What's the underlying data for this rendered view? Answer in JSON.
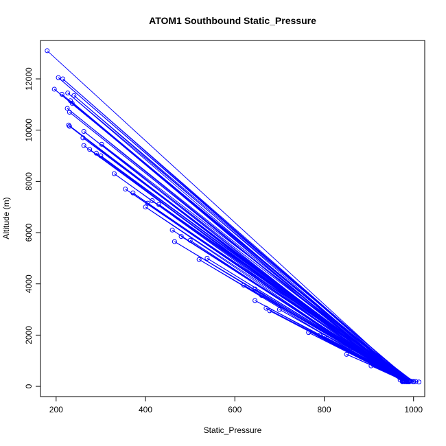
{
  "chart_data": {
    "type": "line",
    "title": "ATOM1 Southbound Static_Pressure",
    "xlabel": "Static_Pressure",
    "ylabel": "Altitude (m)",
    "xlim": [
      165,
      1025
    ],
    "ylim": [
      -400,
      13500
    ],
    "xticks": [
      200,
      400,
      600,
      800,
      1000
    ],
    "yticks": [
      0,
      2000,
      4000,
      6000,
      8000,
      10000,
      12000
    ],
    "series_color": "#0000ff",
    "marker": "open-circle",
    "points": [
      [
        180,
        13100
      ],
      [
        985,
        250
      ],
      [
        205,
        12050
      ],
      [
        990,
        230
      ],
      [
        215,
        12000
      ],
      [
        985,
        220
      ],
      [
        196,
        11600
      ],
      [
        990,
        210
      ],
      [
        213,
        11400
      ],
      [
        980,
        180
      ],
      [
        226,
        11450
      ],
      [
        995,
        200
      ],
      [
        240,
        11350
      ],
      [
        985,
        190
      ],
      [
        232,
        11150
      ],
      [
        975,
        210
      ],
      [
        236,
        11050
      ],
      [
        990,
        180
      ],
      [
        225,
        10850
      ],
      [
        980,
        200
      ],
      [
        230,
        10700
      ],
      [
        985,
        180
      ],
      [
        228,
        10200
      ],
      [
        975,
        230
      ],
      [
        230,
        10150
      ],
      [
        970,
        250
      ],
      [
        262,
        9950
      ],
      [
        990,
        180
      ],
      [
        260,
        9700
      ],
      [
        985,
        190
      ],
      [
        262,
        9400
      ],
      [
        980,
        200
      ],
      [
        275,
        9250
      ],
      [
        975,
        180
      ],
      [
        290,
        9100
      ],
      [
        990,
        200
      ],
      [
        300,
        9000
      ],
      [
        985,
        180
      ],
      [
        330,
        8300
      ],
      [
        975,
        200
      ],
      [
        302,
        9450
      ],
      [
        1000,
        190
      ],
      [
        355,
        7700
      ],
      [
        985,
        180
      ],
      [
        372,
        7550
      ],
      [
        990,
        200
      ],
      [
        400,
        7000
      ],
      [
        975,
        230
      ],
      [
        405,
        7150
      ],
      [
        985,
        180
      ],
      [
        415,
        7250
      ],
      [
        1000,
        180
      ],
      [
        430,
        7100
      ],
      [
        985,
        200
      ],
      [
        460,
        6100
      ],
      [
        980,
        200
      ],
      [
        465,
        5650
      ],
      [
        990,
        180
      ],
      [
        480,
        5850
      ],
      [
        985,
        190
      ],
      [
        500,
        5700
      ],
      [
        975,
        200
      ],
      [
        520,
        4950
      ],
      [
        985,
        200
      ],
      [
        538,
        5000
      ],
      [
        990,
        180
      ],
      [
        620,
        3950
      ],
      [
        985,
        190
      ],
      [
        645,
        3800
      ],
      [
        980,
        200
      ],
      [
        645,
        3350
      ],
      [
        990,
        180
      ],
      [
        660,
        3550
      ],
      [
        985,
        200
      ],
      [
        670,
        3050
      ],
      [
        975,
        230
      ],
      [
        678,
        2950
      ],
      [
        985,
        180
      ],
      [
        700,
        3000
      ],
      [
        990,
        200
      ],
      [
        765,
        2100
      ],
      [
        980,
        200
      ],
      [
        790,
        2000
      ],
      [
        985,
        180
      ],
      [
        800,
        1950
      ],
      [
        990,
        200
      ],
      [
        850,
        1250
      ],
      [
        985,
        200
      ],
      [
        860,
        1500
      ],
      [
        990,
        180
      ],
      [
        905,
        800
      ],
      [
        980,
        200
      ],
      [
        980,
        200
      ],
      [
        1000,
        180
      ],
      [
        1005,
        190
      ],
      [
        1012,
        170
      ]
    ]
  }
}
